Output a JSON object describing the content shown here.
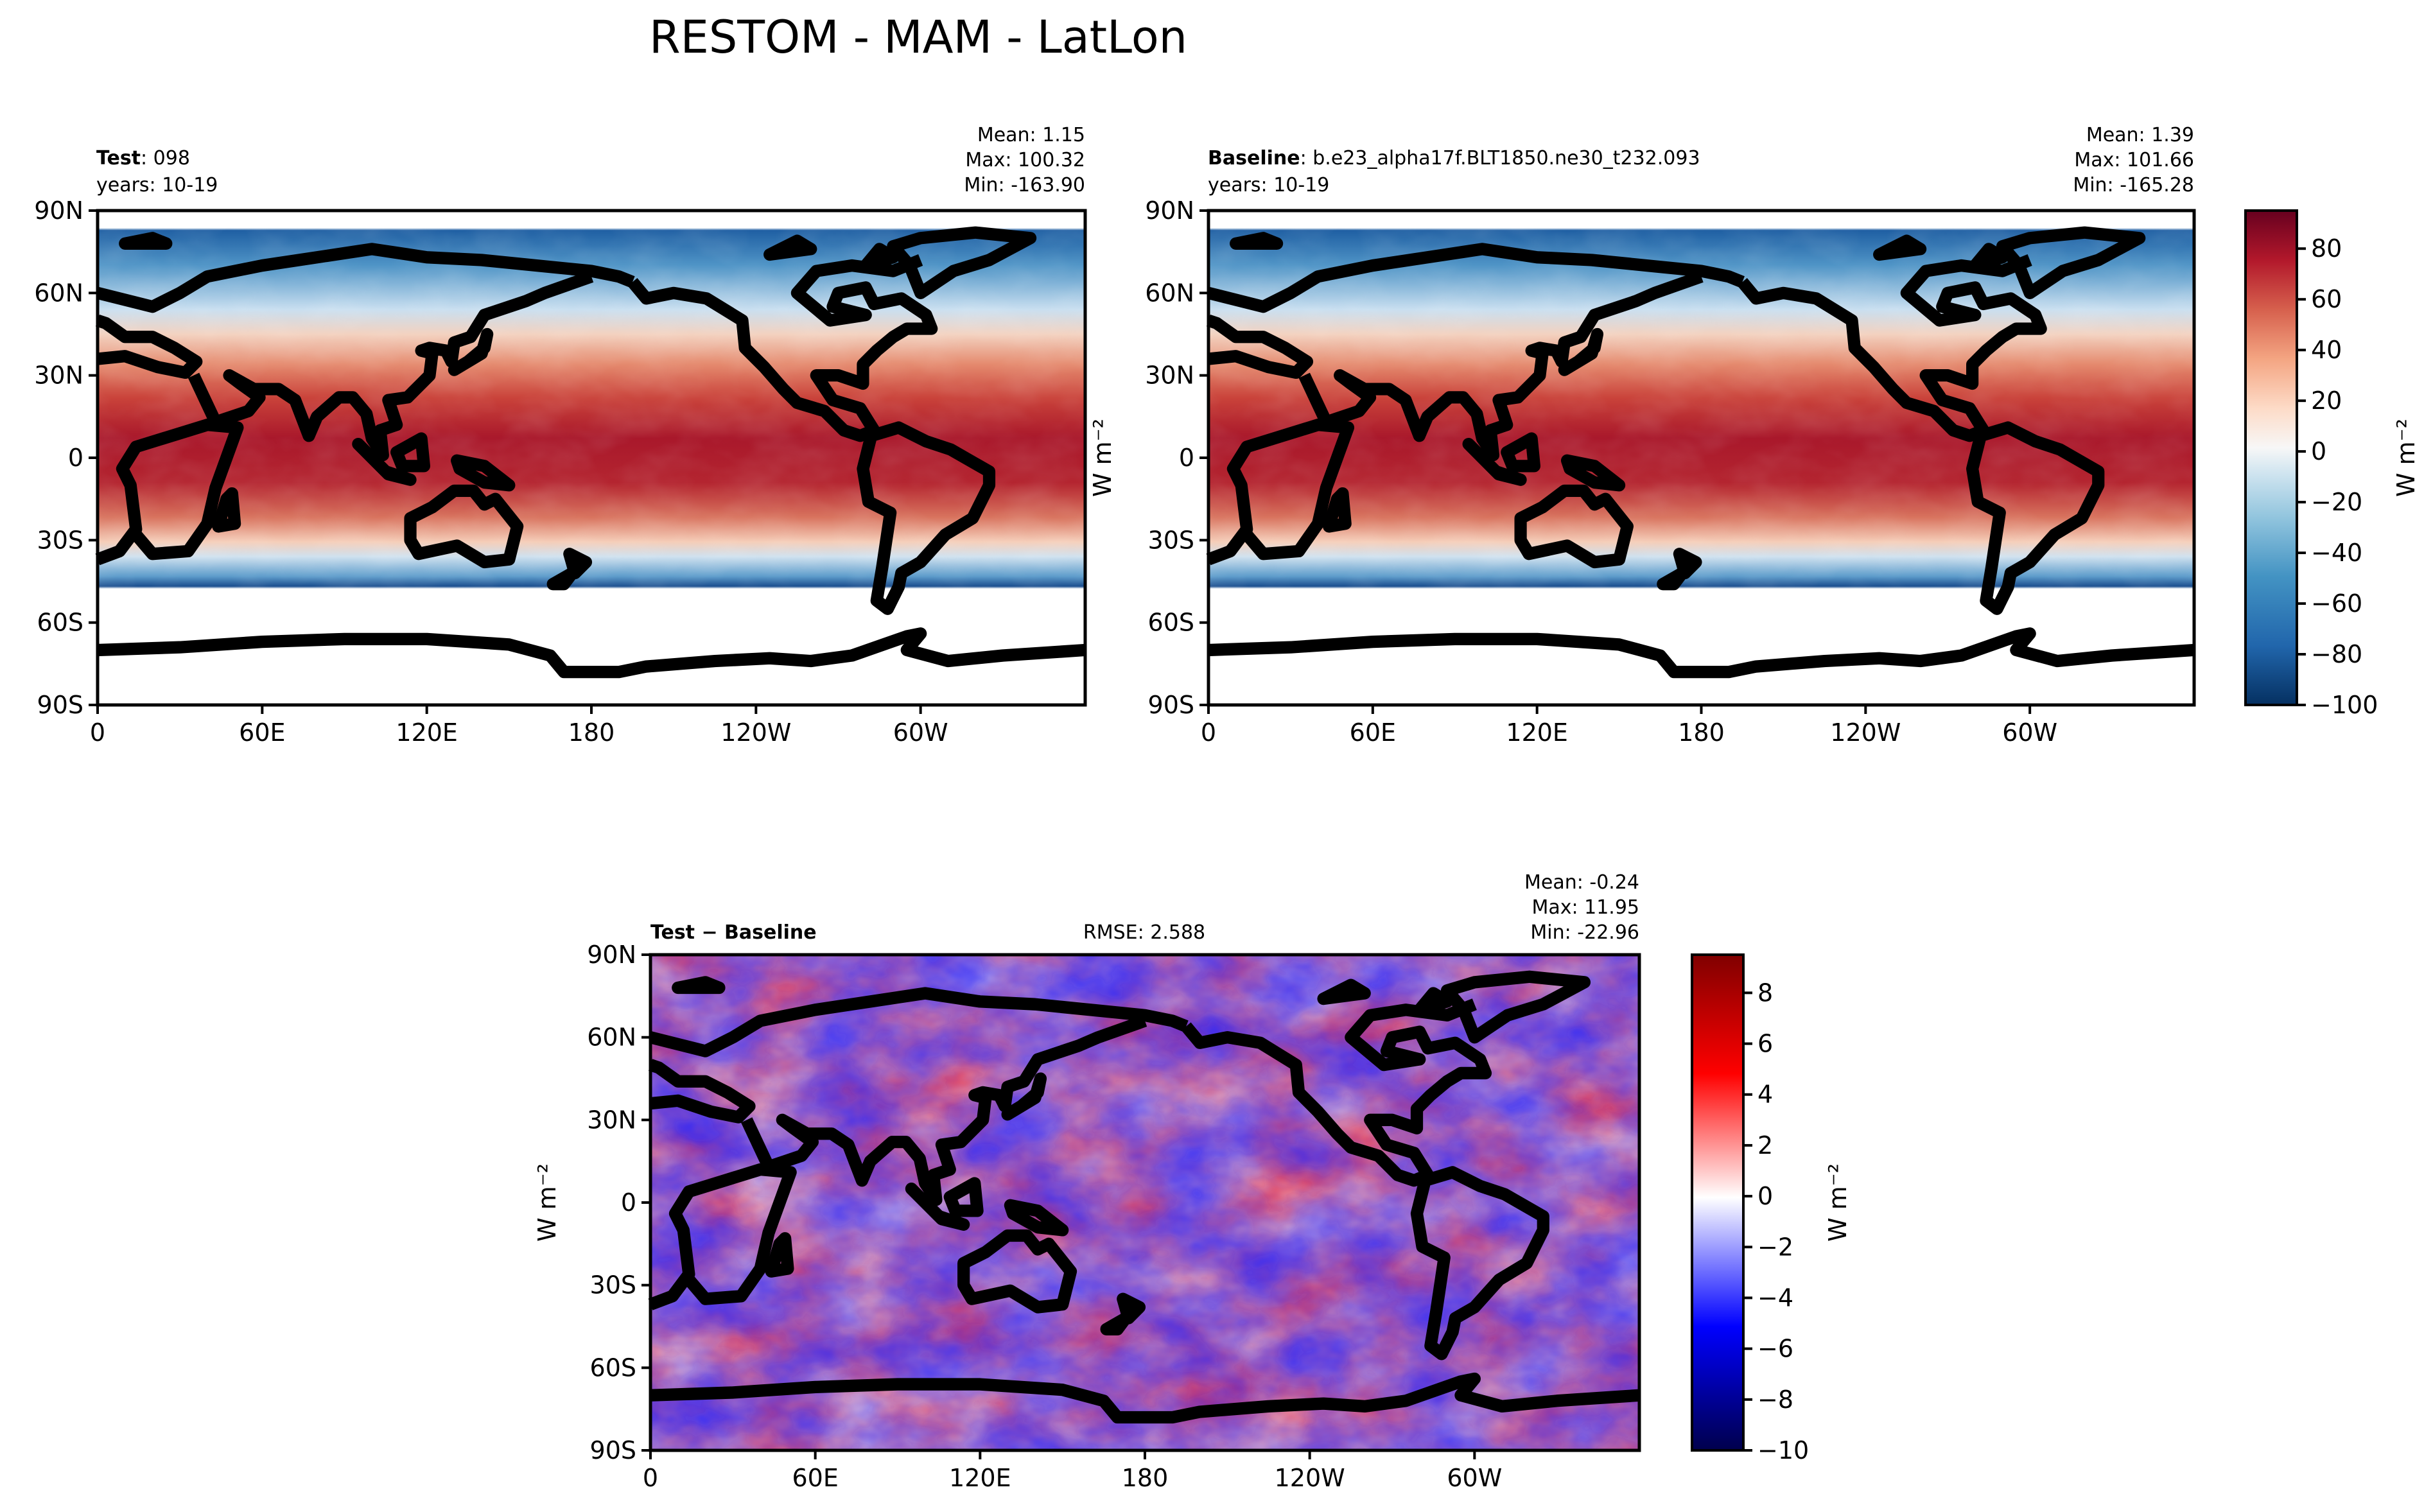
{
  "title": "RESTOM - MAM - LatLon",
  "panels": [
    {
      "id": "test",
      "name_bold": "Test",
      "name_rest": ": 098",
      "years": "years: 10-19",
      "mean": "Mean:  1.15",
      "max": "Max: 100.32",
      "min": "Min: -163.90",
      "ylabel": "W m⁻²"
    },
    {
      "id": "baseline",
      "name_bold": "Baseline",
      "name_rest": ": b.e23_alpha17f.BLT1850.ne30_t232.093",
      "years": "years: 10-19",
      "mean": "Mean:  1.39",
      "max": "Max: 101.66",
      "min": "Min: -165.28",
      "ylabel": ""
    },
    {
      "id": "diff",
      "name_bold": "Test − Baseline",
      "name_rest": "",
      "rmse": "RMSE: 2.588",
      "mean": "Mean: -0.24",
      "max": "Max: 11.95",
      "min": "Min: -22.96",
      "ylabel": "W m⁻²"
    }
  ],
  "colorbar_top": {
    "label": "W m⁻²",
    "ticks": [
      "80",
      "60",
      "40",
      "20",
      "0",
      "−20",
      "−40",
      "−60",
      "−80",
      "−100"
    ],
    "range": [
      -100,
      95
    ],
    "colormap": "RdBu_r"
  },
  "colorbar_diff": {
    "label": "W m⁻²",
    "ticks": [
      "8",
      "6",
      "4",
      "2",
      "0",
      "−2",
      "−4",
      "−6",
      "−8",
      "−10"
    ],
    "range": [
      -10,
      9.5
    ],
    "colormap": "seismic"
  },
  "chart_data": [
    {
      "type": "heatmap",
      "title": "Test: 098",
      "xlabel": "",
      "ylabel": "",
      "x_ticks": [
        "0",
        "60E",
        "120E",
        "180",
        "120W",
        "60W"
      ],
      "y_ticks": [
        "90N",
        "60N",
        "30N",
        "0",
        "30S",
        "60S",
        "90S"
      ],
      "xlim": [
        0,
        360
      ],
      "ylim": [
        -90,
        90
      ],
      "colorbar_range": [
        -100,
        95
      ],
      "stats": {
        "mean": 1.15,
        "max": 100.32,
        "min": -163.9
      }
    },
    {
      "type": "heatmap",
      "title": "Baseline: b.e23_alpha17f.BLT1850.ne30_t232.093",
      "xlabel": "",
      "ylabel": "",
      "x_ticks": [
        "0",
        "60E",
        "120E",
        "180",
        "120W",
        "60W"
      ],
      "y_ticks": [
        "90N",
        "60N",
        "30N",
        "0",
        "30S",
        "60S",
        "90S"
      ],
      "xlim": [
        0,
        360
      ],
      "ylim": [
        -90,
        90
      ],
      "colorbar_range": [
        -100,
        95
      ],
      "stats": {
        "mean": 1.39,
        "max": 101.66,
        "min": -165.28
      }
    },
    {
      "type": "heatmap",
      "title": "Test − Baseline",
      "xlabel": "",
      "ylabel": "",
      "x_ticks": [
        "0",
        "60E",
        "120E",
        "180",
        "120W",
        "60W"
      ],
      "y_ticks": [
        "90N",
        "60N",
        "30N",
        "0",
        "30S",
        "60S",
        "90S"
      ],
      "xlim": [
        0,
        360
      ],
      "ylim": [
        -90,
        90
      ],
      "colorbar_range": [
        -10,
        9.5
      ],
      "stats": {
        "mean": -0.24,
        "max": 11.95,
        "min": -22.96,
        "rmse": 2.588
      }
    }
  ]
}
